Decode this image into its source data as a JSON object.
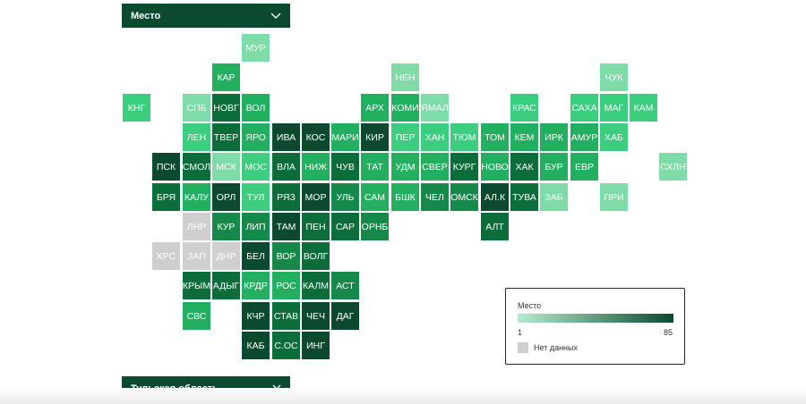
{
  "colors": {
    "shades": [
      "#b7ebcf",
      "#7fdca8",
      "#3ccd7e",
      "#22b060",
      "#15894a",
      "#0b6d3a",
      "#0b4a2f"
    ],
    "nodata": "#cfcfcf",
    "panel": "#0b4a2f"
  },
  "dropdown": {
    "label": "Место",
    "icon": "chevron-down-icon"
  },
  "selected": {
    "label": "Тульская область",
    "icon": "close-icon"
  },
  "legend": {
    "title": "Место",
    "min": "1",
    "max": "85",
    "nodata_label": "Нет данных"
  },
  "tiles": [
    {
      "label": "МУР",
      "col": 4,
      "row": 0,
      "shade": 1
    },
    {
      "label": "КАР",
      "col": 3,
      "row": 1,
      "shade": 3
    },
    {
      "label": "НЕН",
      "col": 9,
      "row": 1,
      "shade": 1
    },
    {
      "label": "ЧУК",
      "col": 16,
      "row": 1,
      "shade": 1
    },
    {
      "label": "КНГ",
      "col": 0,
      "row": 2,
      "shade": 2
    },
    {
      "label": "СПБ",
      "col": 2,
      "row": 2,
      "shade": 1
    },
    {
      "label": "НОВГ",
      "col": 3,
      "row": 2,
      "shade": 5
    },
    {
      "label": "ВОЛ",
      "col": 4,
      "row": 2,
      "shade": 3
    },
    {
      "label": "АРХ",
      "col": 8,
      "row": 2,
      "shade": 3
    },
    {
      "label": "КОМИ",
      "col": 9,
      "row": 2,
      "shade": 3
    },
    {
      "label": "ЯМАЛ",
      "col": 10,
      "row": 2,
      "shade": 1
    },
    {
      "label": "КРАС",
      "col": 13,
      "row": 2,
      "shade": 2
    },
    {
      "label": "САХА",
      "col": 15,
      "row": 2,
      "shade": 2
    },
    {
      "label": "МАГ",
      "col": 16,
      "row": 2,
      "shade": 2
    },
    {
      "label": "КАМ",
      "col": 17,
      "row": 2,
      "shade": 2
    },
    {
      "label": "ЛЕН",
      "col": 2,
      "row": 3,
      "shade": 2
    },
    {
      "label": "ТВЕР",
      "col": 3,
      "row": 3,
      "shade": 5
    },
    {
      "label": "ЯРО",
      "col": 4,
      "row": 3,
      "shade": 3
    },
    {
      "label": "ИВА",
      "col": 5,
      "row": 3,
      "shade": 6
    },
    {
      "label": "КОС",
      "col": 6,
      "row": 3,
      "shade": 6
    },
    {
      "label": "МАРИ",
      "col": 7,
      "row": 3,
      "shade": 3
    },
    {
      "label": "КИР",
      "col": 8,
      "row": 3,
      "shade": 6
    },
    {
      "label": "ПЕР",
      "col": 9,
      "row": 3,
      "shade": 2
    },
    {
      "label": "ХАН",
      "col": 10,
      "row": 3,
      "shade": 2
    },
    {
      "label": "ТЮМ",
      "col": 11,
      "row": 3,
      "shade": 2
    },
    {
      "label": "ТОМ",
      "col": 12,
      "row": 3,
      "shade": 3
    },
    {
      "label": "КЕМ",
      "col": 13,
      "row": 3,
      "shade": 3
    },
    {
      "label": "ИРК",
      "col": 14,
      "row": 3,
      "shade": 3
    },
    {
      "label": "АМУР",
      "col": 15,
      "row": 3,
      "shade": 3
    },
    {
      "label": "ХАБ",
      "col": 16,
      "row": 3,
      "shade": 2
    },
    {
      "label": "ПСК",
      "col": 1,
      "row": 4,
      "shade": 6
    },
    {
      "label": "СМОЛ",
      "col": 2,
      "row": 4,
      "shade": 5
    },
    {
      "label": "МСК",
      "col": 3,
      "row": 4,
      "shade": 1
    },
    {
      "label": "МОС",
      "col": 4,
      "row": 4,
      "shade": 2
    },
    {
      "label": "ВЛА",
      "col": 5,
      "row": 4,
      "shade": 5
    },
    {
      "label": "НИЖ",
      "col": 6,
      "row": 4,
      "shade": 3
    },
    {
      "label": "ЧУВ",
      "col": 7,
      "row": 4,
      "shade": 5
    },
    {
      "label": "ТАТ",
      "col": 8,
      "row": 4,
      "shade": 3
    },
    {
      "label": "УДМ",
      "col": 9,
      "row": 4,
      "shade": 3
    },
    {
      "label": "СВЕР",
      "col": 10,
      "row": 4,
      "shade": 3
    },
    {
      "label": "КУРГ",
      "col": 11,
      "row": 4,
      "shade": 5
    },
    {
      "label": "НОВО",
      "col": 12,
      "row": 4,
      "shade": 3
    },
    {
      "label": "ХАК",
      "col": 13,
      "row": 4,
      "shade": 5
    },
    {
      "label": "БУР",
      "col": 14,
      "row": 4,
      "shade": 3
    },
    {
      "label": "ЕВР",
      "col": 15,
      "row": 4,
      "shade": 3
    },
    {
      "label": "СХЛН",
      "col": 18,
      "row": 4,
      "shade": 1
    },
    {
      "label": "БРЯ",
      "col": 1,
      "row": 5,
      "shade": 5
    },
    {
      "label": "КАЛУ",
      "col": 2,
      "row": 5,
      "shade": 3
    },
    {
      "label": "ОРЛ",
      "col": 3,
      "row": 5,
      "shade": 6
    },
    {
      "label": "ТУЛ",
      "col": 4,
      "row": 5,
      "shade": 2
    },
    {
      "label": "РЯЗ",
      "col": 5,
      "row": 5,
      "shade": 5
    },
    {
      "label": "МОР",
      "col": 6,
      "row": 5,
      "shade": 6
    },
    {
      "label": "УЛЬ",
      "col": 7,
      "row": 5,
      "shade": 4
    },
    {
      "label": "САМ",
      "col": 8,
      "row": 5,
      "shade": 3
    },
    {
      "label": "БШК",
      "col": 9,
      "row": 5,
      "shade": 3
    },
    {
      "label": "ЧЕЛ",
      "col": 10,
      "row": 5,
      "shade": 4
    },
    {
      "label": "ОМСК",
      "col": 11,
      "row": 5,
      "shade": 4
    },
    {
      "label": "АЛ.К",
      "col": 12,
      "row": 5,
      "shade": 6
    },
    {
      "label": "ТУВА",
      "col": 13,
      "row": 5,
      "shade": 5
    },
    {
      "label": "ЗАБ",
      "col": 14,
      "row": 5,
      "shade": 1
    },
    {
      "label": "ПРИ",
      "col": 16,
      "row": 5,
      "shade": 1
    },
    {
      "label": "ЛНР",
      "col": 2,
      "row": 6,
      "shade": -1
    },
    {
      "label": "КУР",
      "col": 3,
      "row": 6,
      "shade": 4
    },
    {
      "label": "ЛИП",
      "col": 4,
      "row": 6,
      "shade": 4
    },
    {
      "label": "ТАМ",
      "col": 5,
      "row": 6,
      "shade": 6
    },
    {
      "label": "ПЕН",
      "col": 6,
      "row": 6,
      "shade": 5
    },
    {
      "label": "САР",
      "col": 7,
      "row": 6,
      "shade": 5
    },
    {
      "label": "ОРНБ",
      "col": 8,
      "row": 6,
      "shade": 4
    },
    {
      "label": "АЛТ",
      "col": 12,
      "row": 6,
      "shade": 5
    },
    {
      "label": "ХРС",
      "col": 1,
      "row": 7,
      "shade": -1
    },
    {
      "label": "ЗАП",
      "col": 2,
      "row": 7,
      "shade": -1
    },
    {
      "label": "ДНР",
      "col": 3,
      "row": 7,
      "shade": -1
    },
    {
      "label": "БЕЛ",
      "col": 4,
      "row": 7,
      "shade": 6
    },
    {
      "label": "ВОР",
      "col": 5,
      "row": 7,
      "shade": 4
    },
    {
      "label": "ВОЛГ",
      "col": 6,
      "row": 7,
      "shade": 5
    },
    {
      "label": "КРЫМ",
      "col": 2,
      "row": 8,
      "shade": 5
    },
    {
      "label": "АДЫГ",
      "col": 3,
      "row": 8,
      "shade": 5
    },
    {
      "label": "КРДР",
      "col": 4,
      "row": 8,
      "shade": 3
    },
    {
      "label": "РОС",
      "col": 5,
      "row": 8,
      "shade": 3
    },
    {
      "label": "КАЛМ",
      "col": 6,
      "row": 8,
      "shade": 5
    },
    {
      "label": "АСТ",
      "col": 7,
      "row": 8,
      "shade": 4
    },
    {
      "label": "СВС",
      "col": 2,
      "row": 9,
      "shade": 3
    },
    {
      "label": "КЧР",
      "col": 4,
      "row": 9,
      "shade": 6
    },
    {
      "label": "СТАВ",
      "col": 5,
      "row": 9,
      "shade": 5
    },
    {
      "label": "ЧЕЧ",
      "col": 6,
      "row": 9,
      "shade": 6
    },
    {
      "label": "ДАГ",
      "col": 7,
      "row": 9,
      "shade": 6
    },
    {
      "label": "КАБ",
      "col": 4,
      "row": 10,
      "shade": 6
    },
    {
      "label": "С.ОС",
      "col": 5,
      "row": 10,
      "shade": 5
    },
    {
      "label": "ИНГ",
      "col": 6,
      "row": 10,
      "shade": 6
    }
  ]
}
